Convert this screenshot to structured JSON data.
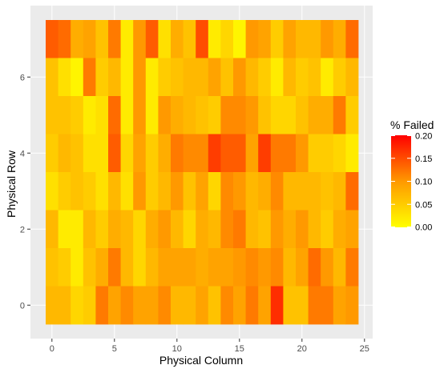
{
  "chart_data": {
    "type": "heatmap",
    "xlabel": "Physical Column",
    "ylabel": "Physical Row",
    "x_ticks": [
      0,
      5,
      10,
      15,
      20,
      25
    ],
    "y_ticks": [
      0,
      2,
      4,
      6
    ],
    "xlim": [
      -0.5,
      24.5
    ],
    "ylim": [
      -0.5,
      7.5
    ],
    "grid": true,
    "legend": {
      "title": "% Failed",
      "placement": "right",
      "min": 0.0,
      "max": 0.2,
      "ticks": [
        "0.20",
        "0.15",
        "0.10",
        "0.05",
        "0.00"
      ],
      "low_color": "#FFFF00",
      "high_color": "#FF0000"
    },
    "rows_top_to_bottom": [
      7,
      6,
      5,
      4,
      3,
      2,
      1,
      0
    ],
    "values": [
      [
        0.14,
        0.13,
        0.08,
        0.09,
        0.06,
        0.12,
        0.02,
        0.1,
        0.14,
        0.03,
        0.08,
        0.06,
        0.15,
        0.02,
        0.04,
        0.01,
        0.1,
        0.09,
        0.05,
        0.09,
        0.07,
        0.07,
        0.1,
        0.08,
        0.13
      ],
      [
        0.06,
        0.03,
        0.01,
        0.12,
        0.05,
        0.07,
        0.02,
        0.1,
        0.02,
        0.05,
        0.06,
        0.07,
        0.07,
        0.09,
        0.06,
        0.1,
        0.07,
        0.05,
        0.02,
        0.07,
        0.05,
        0.06,
        0.02,
        0.05,
        0.07
      ],
      [
        0.06,
        0.06,
        0.05,
        0.02,
        0.03,
        0.13,
        0.02,
        0.1,
        0.02,
        0.1,
        0.08,
        0.07,
        0.06,
        0.05,
        0.11,
        0.11,
        0.1,
        0.06,
        0.04,
        0.04,
        0.06,
        0.08,
        0.08,
        0.12,
        0.05
      ],
      [
        0.05,
        0.07,
        0.06,
        0.03,
        0.03,
        0.14,
        0.04,
        0.09,
        0.05,
        0.08,
        0.12,
        0.11,
        0.11,
        0.16,
        0.14,
        0.14,
        0.09,
        0.16,
        0.12,
        0.12,
        0.1,
        0.05,
        0.05,
        0.04,
        0.02
      ],
      [
        0.03,
        0.05,
        0.06,
        0.05,
        0.03,
        0.07,
        0.03,
        0.1,
        0.05,
        0.07,
        0.1,
        0.06,
        0.09,
        0.04,
        0.11,
        0.1,
        0.07,
        0.08,
        0.11,
        0.07,
        0.07,
        0.07,
        0.06,
        0.07,
        0.13
      ],
      [
        0.07,
        0.02,
        0.02,
        0.07,
        0.05,
        0.08,
        0.07,
        0.04,
        0.08,
        0.1,
        0.07,
        0.04,
        0.08,
        0.07,
        0.11,
        0.12,
        0.07,
        0.06,
        0.1,
        0.08,
        0.1,
        0.07,
        0.05,
        0.08,
        0.09
      ],
      [
        0.06,
        0.05,
        0.02,
        0.06,
        0.08,
        0.12,
        0.07,
        0.04,
        0.07,
        0.09,
        0.09,
        0.09,
        0.08,
        0.09,
        0.09,
        0.1,
        0.11,
        0.1,
        0.11,
        0.07,
        0.09,
        0.13,
        0.1,
        0.07,
        0.12
      ],
      [
        0.07,
        0.07,
        0.04,
        0.05,
        0.12,
        0.09,
        0.11,
        0.09,
        0.09,
        0.11,
        0.07,
        0.07,
        0.09,
        0.06,
        0.11,
        0.09,
        0.12,
        0.09,
        0.17,
        0.06,
        0.06,
        0.12,
        0.12,
        0.09,
        0.1
      ]
    ]
  }
}
